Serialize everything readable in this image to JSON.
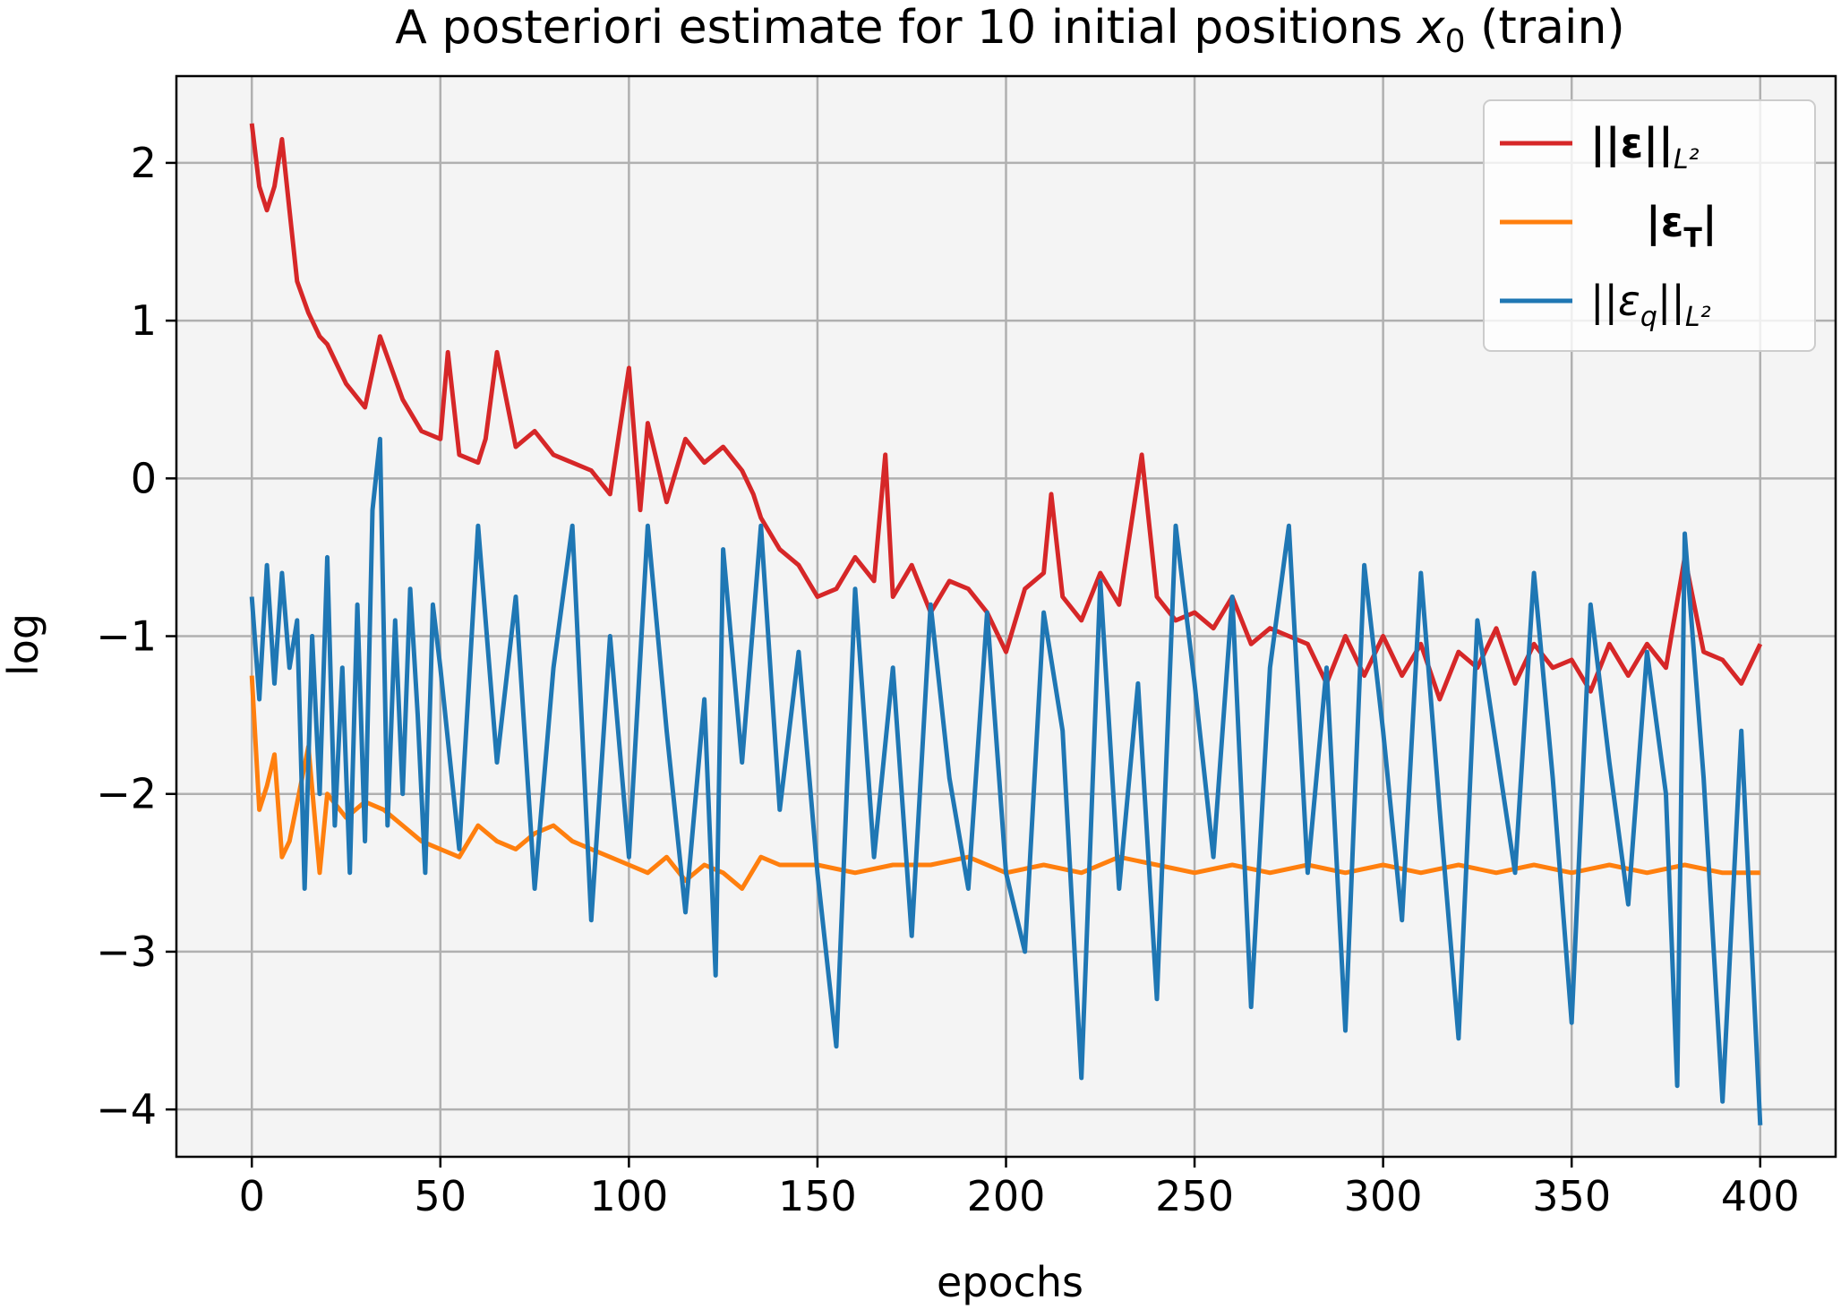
{
  "chart_data": {
    "type": "line",
    "title": "A posteriori estimate for 10 initial positions x0 (train)",
    "title_parts": {
      "prefix": "A posteriori estimate for 10 initial positions ",
      "var": "x",
      "sub": "0",
      "suffix": " (train)"
    },
    "xlabel": "epochs",
    "ylabel": "log",
    "xlim": [
      -20,
      420
    ],
    "ylim": [
      -4.3,
      2.55
    ],
    "xticks": [
      0,
      50,
      100,
      150,
      200,
      250,
      300,
      350,
      400
    ],
    "yticks": [
      2,
      1,
      0,
      -1,
      -2,
      -3,
      -4
    ],
    "xtick_labels": [
      "0",
      "50",
      "100",
      "150",
      "200",
      "250",
      "300",
      "350",
      "400"
    ],
    "ytick_labels": [
      "2",
      "1",
      "0",
      "−1",
      "−2",
      "−3",
      "−4"
    ],
    "grid": true,
    "legend_position": "top-right",
    "series": [
      {
        "name": "||ε||L²",
        "color": "#d62728",
        "x": [
          0,
          2,
          4,
          6,
          8,
          10,
          12,
          15,
          18,
          20,
          25,
          30,
          34,
          40,
          45,
          50,
          52,
          55,
          60,
          62,
          65,
          70,
          75,
          80,
          85,
          90,
          95,
          100,
          103,
          105,
          110,
          115,
          120,
          125,
          130,
          133,
          135,
          140,
          145,
          150,
          155,
          160,
          165,
          168,
          170,
          175,
          180,
          185,
          190,
          195,
          200,
          205,
          210,
          212,
          215,
          220,
          225,
          230,
          236,
          240,
          245,
          250,
          255,
          260,
          265,
          270,
          275,
          280,
          285,
          290,
          295,
          300,
          305,
          310,
          315,
          320,
          325,
          330,
          335,
          340,
          345,
          350,
          355,
          360,
          365,
          370,
          375,
          380,
          385,
          390,
          395,
          400
        ],
        "y": [
          2.25,
          1.85,
          1.7,
          1.85,
          2.15,
          1.7,
          1.25,
          1.05,
          0.9,
          0.85,
          0.6,
          0.45,
          0.9,
          0.5,
          0.3,
          0.25,
          0.8,
          0.15,
          0.1,
          0.25,
          0.8,
          0.2,
          0.3,
          0.15,
          0.1,
          0.05,
          -0.1,
          0.7,
          -0.2,
          0.35,
          -0.15,
          0.25,
          0.1,
          0.2,
          0.05,
          -0.1,
          -0.25,
          -0.45,
          -0.55,
          -0.75,
          -0.7,
          -0.5,
          -0.65,
          0.15,
          -0.75,
          -0.55,
          -0.85,
          -0.65,
          -0.7,
          -0.85,
          -1.1,
          -0.7,
          -0.6,
          -0.1,
          -0.75,
          -0.9,
          -0.6,
          -0.8,
          0.15,
          -0.75,
          -0.9,
          -0.85,
          -0.95,
          -0.75,
          -1.05,
          -0.95,
          -1.0,
          -1.05,
          -1.3,
          -1.0,
          -1.25,
          -1.0,
          -1.25,
          -1.05,
          -1.4,
          -1.1,
          -1.2,
          -0.95,
          -1.3,
          -1.05,
          -1.2,
          -1.15,
          -1.35,
          -1.05,
          -1.25,
          -1.05,
          -1.2,
          -0.5,
          -1.1,
          -1.15,
          -1.3,
          -1.05
        ]
      },
      {
        "name": "|εT|",
        "color": "#ff7f0e",
        "x": [
          0,
          2,
          4,
          6,
          8,
          10,
          15,
          18,
          20,
          25,
          30,
          35,
          40,
          45,
          50,
          55,
          60,
          65,
          70,
          75,
          80,
          85,
          90,
          95,
          100,
          105,
          110,
          115,
          120,
          125,
          130,
          135,
          140,
          150,
          160,
          170,
          180,
          190,
          200,
          210,
          220,
          230,
          240,
          250,
          260,
          270,
          280,
          290,
          300,
          310,
          320,
          330,
          340,
          350,
          360,
          370,
          380,
          390,
          400
        ],
        "y": [
          -1.25,
          -2.1,
          -1.95,
          -1.75,
          -2.4,
          -2.3,
          -1.7,
          -2.5,
          -2.0,
          -2.15,
          -2.05,
          -2.1,
          -2.2,
          -2.3,
          -2.35,
          -2.4,
          -2.2,
          -2.3,
          -2.35,
          -2.25,
          -2.2,
          -2.3,
          -2.35,
          -2.4,
          -2.45,
          -2.5,
          -2.4,
          -2.55,
          -2.45,
          -2.5,
          -2.6,
          -2.4,
          -2.45,
          -2.45,
          -2.5,
          -2.45,
          -2.45,
          -2.4,
          -2.5,
          -2.45,
          -2.5,
          -2.4,
          -2.45,
          -2.5,
          -2.45,
          -2.5,
          -2.45,
          -2.5,
          -2.45,
          -2.5,
          -2.45,
          -2.5,
          -2.45,
          -2.5,
          -2.45,
          -2.5,
          -2.45,
          -2.5,
          -2.5
        ]
      },
      {
        "name": "||εq||L²",
        "color": "#1f77b4",
        "x": [
          0,
          2,
          4,
          6,
          8,
          10,
          12,
          14,
          16,
          18,
          20,
          22,
          24,
          26,
          28,
          30,
          32,
          34,
          36,
          38,
          40,
          42,
          44,
          46,
          48,
          50,
          55,
          60,
          65,
          70,
          75,
          80,
          85,
          90,
          95,
          100,
          105,
          110,
          115,
          120,
          123,
          125,
          130,
          135,
          140,
          145,
          150,
          155,
          160,
          165,
          170,
          175,
          180,
          185,
          190,
          195,
          200,
          205,
          210,
          215,
          220,
          225,
          230,
          235,
          240,
          245,
          250,
          255,
          260,
          265,
          270,
          275,
          280,
          285,
          290,
          295,
          300,
          305,
          310,
          315,
          320,
          325,
          330,
          335,
          340,
          345,
          350,
          355,
          360,
          365,
          370,
          375,
          378,
          380,
          385,
          390,
          395,
          400
        ],
        "y": [
          -0.75,
          -1.4,
          -0.55,
          -1.3,
          -0.6,
          -1.2,
          -0.9,
          -2.6,
          -1.0,
          -2.0,
          -0.5,
          -2.2,
          -1.2,
          -2.5,
          -0.8,
          -2.3,
          -0.2,
          0.25,
          -2.2,
          -0.9,
          -2.0,
          -0.7,
          -1.5,
          -2.5,
          -0.8,
          -1.2,
          -2.35,
          -0.3,
          -1.8,
          -0.75,
          -2.6,
          -1.2,
          -0.3,
          -2.8,
          -1.0,
          -2.4,
          -0.3,
          -1.6,
          -2.75,
          -1.4,
          -3.15,
          -0.45,
          -1.8,
          -0.3,
          -2.1,
          -1.1,
          -2.5,
          -3.6,
          -0.7,
          -2.4,
          -1.2,
          -2.9,
          -0.8,
          -1.9,
          -2.6,
          -0.85,
          -2.5,
          -3.0,
          -0.85,
          -1.6,
          -3.8,
          -0.65,
          -2.6,
          -1.3,
          -3.3,
          -0.3,
          -1.3,
          -2.4,
          -0.75,
          -3.35,
          -1.2,
          -0.3,
          -2.5,
          -1.2,
          -3.5,
          -0.55,
          -1.6,
          -2.8,
          -0.6,
          -2.1,
          -3.55,
          -0.9,
          -1.7,
          -2.5,
          -0.6,
          -1.9,
          -3.45,
          -0.8,
          -1.8,
          -2.7,
          -1.1,
          -2.0,
          -3.85,
          -0.35,
          -1.9,
          -3.95,
          -1.6,
          -4.1
        ]
      }
    ],
    "legend": {
      "items": [
        {
          "base": "||ε||",
          "sub": "L²",
          "color": "#d62728"
        },
        {
          "base": "|ε",
          "sub": "T",
          "tail": "|",
          "color": "#ff7f0e"
        },
        {
          "base": "||ε",
          "sub": "q",
          "mid": "||",
          "sub2": "L²",
          "color": "#1f77b4"
        }
      ]
    },
    "colors": {
      "plot_background": "#f4f4f4",
      "grid": "#b0b0b0",
      "axes": "#000000"
    }
  }
}
